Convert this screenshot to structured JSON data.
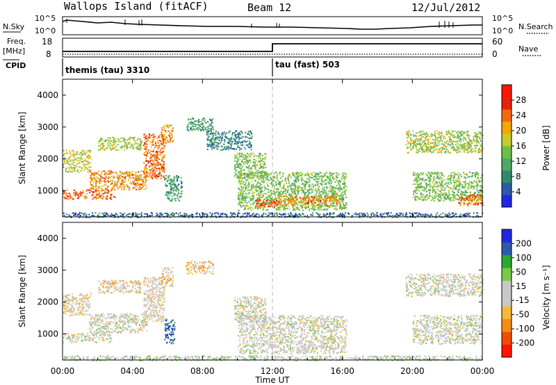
{
  "header": {
    "station": "Wallops Island (fitACF)",
    "beam": "Beam 12",
    "date": "12/Jul/2012"
  },
  "strips": {
    "nsky_label": "N.Sky",
    "nsearch_label": "N.Search",
    "noise_ticks_left": [
      "10^5",
      "10^0"
    ],
    "noise_ticks_right": [
      "10^5",
      "10^0"
    ],
    "freq_label": "Freq.",
    "freq_unit": "[MHz]",
    "freq_ticks": [
      "18",
      "8"
    ],
    "nave_label": "Nave",
    "nave_ticks": [
      "60",
      "0"
    ],
    "cpid_label": "CPID",
    "cpid_programs": [
      {
        "name": "themis (tau) 3310",
        "start_hour": 0
      },
      {
        "name": "tau (fast) 503",
        "start_hour": 12
      }
    ]
  },
  "colors": {
    "power_scale": [
      "#1f28e0",
      "#2c5aa8",
      "#2f8a6c",
      "#4fa868",
      "#6cc04a",
      "#c8c832",
      "#f2a800",
      "#f26a10",
      "#e8200c",
      "#ff1400"
    ],
    "velocity_scale": [
      "#ff1400",
      "#f24c00",
      "#f68c18",
      "#f6b83c",
      "#c8c8c8",
      "#c8c8c8",
      "#78c84a",
      "#2aa830",
      "#2c5aa8",
      "#1f28e0"
    ]
  },
  "chart_data": [
    {
      "type": "heatmap",
      "name": "power",
      "x_start": "00:00",
      "x_end": "00:00",
      "x_range_hours": [
        0,
        24
      ],
      "ylabel": "Slant Range [km]",
      "ylim": [
        180,
        4500
      ],
      "yticks": [
        "1000",
        "2000",
        "3000",
        "4000"
      ],
      "colorbar_label": "Power [dB]",
      "colorbar_ticks": [
        "4",
        "8",
        "12",
        "16",
        "20",
        "24",
        "28"
      ],
      "colorbar_range": [
        0,
        32
      ],
      "bands": [
        {
          "t": [
            0.0,
            3.0
          ],
          "r": [
            750,
            1050
          ],
          "v": 24
        },
        {
          "t": [
            0.0,
            1.6
          ],
          "r": [
            1600,
            2300
          ],
          "v": 18
        },
        {
          "t": [
            1.5,
            4.8
          ],
          "r": [
            1050,
            1650
          ],
          "v": 22
        },
        {
          "t": [
            2.0,
            4.5
          ],
          "r": [
            2300,
            2700
          ],
          "v": 16
        },
        {
          "t": [
            4.6,
            5.8
          ],
          "r": [
            1400,
            2800
          ],
          "v": 24
        },
        {
          "t": [
            5.6,
            6.3
          ],
          "r": [
            2500,
            3100
          ],
          "v": 22
        },
        {
          "t": [
            5.8,
            6.8
          ],
          "r": [
            700,
            1500
          ],
          "v": 10
        },
        {
          "t": [
            7.0,
            8.6
          ],
          "r": [
            2900,
            3300
          ],
          "v": 10
        },
        {
          "t": [
            8.2,
            10.8
          ],
          "r": [
            2300,
            2900
          ],
          "v": 8
        },
        {
          "t": [
            9.8,
            11.6
          ],
          "r": [
            1400,
            2200
          ],
          "v": 14
        },
        {
          "t": [
            10.0,
            16.2
          ],
          "r": [
            400,
            1600
          ],
          "v": 14
        },
        {
          "t": [
            12.2,
            15.8
          ],
          "r": [
            550,
            850
          ],
          "v": 22
        },
        {
          "t": [
            11.0,
            12.3
          ],
          "r": [
            500,
            750
          ],
          "v": 26
        },
        {
          "t": [
            19.6,
            24.0
          ],
          "r": [
            2200,
            2900
          ],
          "v": 16
        },
        {
          "t": [
            20.0,
            24.0
          ],
          "r": [
            700,
            1600
          ],
          "v": 14
        },
        {
          "t": [
            22.6,
            24.0
          ],
          "r": [
            550,
            900
          ],
          "v": 24
        },
        {
          "t": [
            0.0,
            24.0
          ],
          "r": [
            180,
            330
          ],
          "v": 6
        }
      ]
    },
    {
      "type": "heatmap",
      "name": "velocity",
      "x_start": "00:00",
      "x_end": "00:00",
      "x_range_hours": [
        0,
        24
      ],
      "xlabel": "Time UT",
      "xticks": [
        "00:00",
        "04:00",
        "08:00",
        "12:00",
        "16:00",
        "20:00",
        "00:00"
      ],
      "ylabel": "Slant Range [km]",
      "ylim": [
        180,
        4500
      ],
      "yticks": [
        "1000",
        "2000",
        "3000",
        "4000"
      ],
      "colorbar_label": "Velocity [m s⁻¹]",
      "colorbar_ticks": [
        "-200",
        "-100",
        "-50",
        "-15",
        "15",
        "50",
        "100",
        "200"
      ],
      "colorbar_range": [
        -250,
        250
      ],
      "bands": [
        {
          "t": [
            0.0,
            3.0
          ],
          "r": [
            750,
            1050
          ],
          "v": 0
        },
        {
          "t": [
            0.0,
            1.6
          ],
          "r": [
            1600,
            2300
          ],
          "v": -30
        },
        {
          "t": [
            1.5,
            4.8
          ],
          "r": [
            1050,
            1650
          ],
          "v": 0
        },
        {
          "t": [
            2.0,
            4.5
          ],
          "r": [
            2300,
            2700
          ],
          "v": -40
        },
        {
          "t": [
            4.6,
            5.8
          ],
          "r": [
            1400,
            2800
          ],
          "v": -20
        },
        {
          "t": [
            5.6,
            6.3
          ],
          "r": [
            2500,
            3100
          ],
          "v": -60
        },
        {
          "t": [
            5.8,
            6.4
          ],
          "r": [
            700,
            1500
          ],
          "v": 160
        },
        {
          "t": [
            7.0,
            8.6
          ],
          "r": [
            2900,
            3300
          ],
          "v": -60
        },
        {
          "t": [
            9.8,
            11.6
          ],
          "r": [
            1400,
            2200
          ],
          "v": 0
        },
        {
          "t": [
            10.0,
            16.2
          ],
          "r": [
            400,
            1600
          ],
          "v": 0
        },
        {
          "t": [
            19.6,
            24.0
          ],
          "r": [
            2200,
            2900
          ],
          "v": 0
        },
        {
          "t": [
            20.0,
            24.0
          ],
          "r": [
            700,
            1600
          ],
          "v": 0
        },
        {
          "t": [
            0.0,
            24.0
          ],
          "r": [
            180,
            330
          ],
          "v": 20
        }
      ]
    }
  ]
}
